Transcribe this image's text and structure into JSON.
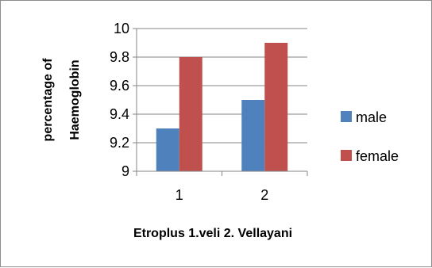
{
  "chart_data": {
    "type": "bar",
    "categories": [
      "1",
      "2"
    ],
    "series": [
      {
        "name": "male",
        "values": [
          9.3,
          9.5
        ],
        "color": "#4f81bd"
      },
      {
        "name": "female",
        "values": [
          9.8,
          9.9
        ],
        "color": "#c0504d"
      }
    ],
    "ylim": [
      9,
      10
    ],
    "yticks": [
      "9",
      "9.2",
      "9.4",
      "9.6",
      "9.8",
      "10"
    ],
    "ylabel_line1": "percentage of",
    "ylabel_line2": "Haemoglobin",
    "xlabel": "Etroplus 1.veli  2. Vellayani",
    "grid": true,
    "legend_position": "right",
    "gridline_color": "#868686"
  }
}
